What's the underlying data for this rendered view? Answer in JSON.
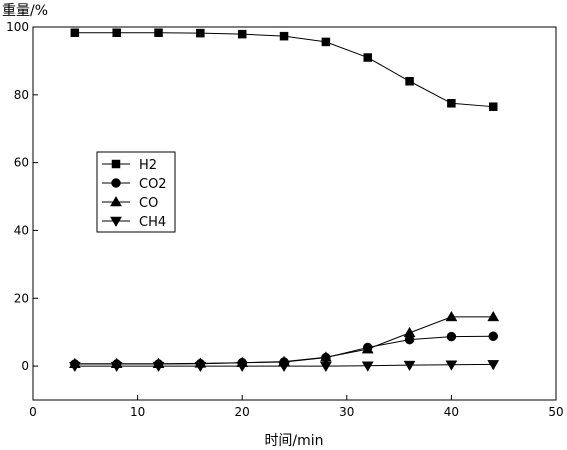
{
  "chart_data": {
    "type": "line",
    "ylabel": "重量/%",
    "xlabel": "时间/min",
    "xlim": [
      0,
      50
    ],
    "ylim": [
      -10,
      100
    ],
    "xticks": [
      0,
      10,
      20,
      30,
      40,
      50
    ],
    "yticks": [
      0,
      20,
      40,
      60,
      80,
      100
    ],
    "xtick_labels": [
      "0",
      "10",
      "20",
      "30",
      "40",
      "50"
    ],
    "ytick_labels": [
      "0",
      "20",
      "40",
      "60",
      "80",
      "100"
    ],
    "grid": false,
    "legend_position": "middle-left",
    "x": [
      4,
      8,
      12,
      16,
      20,
      24,
      28,
      32,
      36,
      40,
      44
    ],
    "series": [
      {
        "name": "H2",
        "marker": "square",
        "values": [
          98.3,
          98.3,
          98.3,
          98.2,
          97.9,
          97.3,
          95.6,
          91.0,
          84.0,
          77.5,
          76.5
        ]
      },
      {
        "name": "CO2",
        "marker": "circle",
        "values": [
          0.6,
          0.6,
          0.6,
          0.7,
          1.0,
          1.2,
          2.5,
          5.5,
          7.8,
          8.7,
          8.8
        ]
      },
      {
        "name": "CO",
        "marker": "triangle-up",
        "values": [
          0.7,
          0.7,
          0.7,
          0.8,
          1.0,
          1.3,
          2.6,
          5.0,
          9.8,
          14.5,
          14.5
        ]
      },
      {
        "name": "CH4",
        "marker": "triangle-down",
        "values": [
          0.0,
          0.0,
          0.0,
          0.0,
          0.0,
          0.0,
          0.0,
          0.1,
          0.3,
          0.4,
          0.5
        ]
      }
    ]
  }
}
